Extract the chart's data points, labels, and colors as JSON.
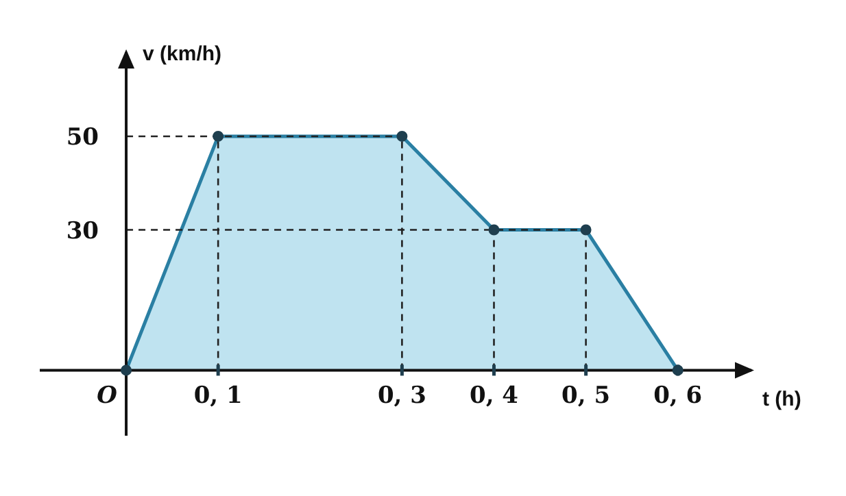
{
  "chart_data": {
    "type": "area",
    "xlabel": "t (h)",
    "ylabel": "v (km/h)",
    "categories": [
      "O",
      "0, 1",
      null,
      "0, 3",
      "0, 4",
      "0, 5",
      "0, 6"
    ],
    "values": [
      0,
      50,
      50,
      50,
      30,
      30,
      0
    ],
    "color": "#2a7fa3",
    "marker": "circle",
    "ylim": [
      -14,
      68
    ],
    "yticks": [
      30,
      50
    ],
    "ref_lines": [
      {
        "axis": "x",
        "value": "0, 1",
        "line_style": "dashed"
      },
      {
        "axis": "x",
        "value": "0, 3",
        "line_style": "dashed"
      },
      {
        "axis": "x",
        "value": "0, 4",
        "line_style": "dashed"
      },
      {
        "axis": "x",
        "value": "0, 5",
        "line_style": "dashed"
      },
      {
        "axis": "y",
        "value": 30,
        "line_style": "dashed"
      },
      {
        "axis": "y",
        "value": 50,
        "line_style": "dashed"
      }
    ],
    "grid": false,
    "legend": false
  }
}
